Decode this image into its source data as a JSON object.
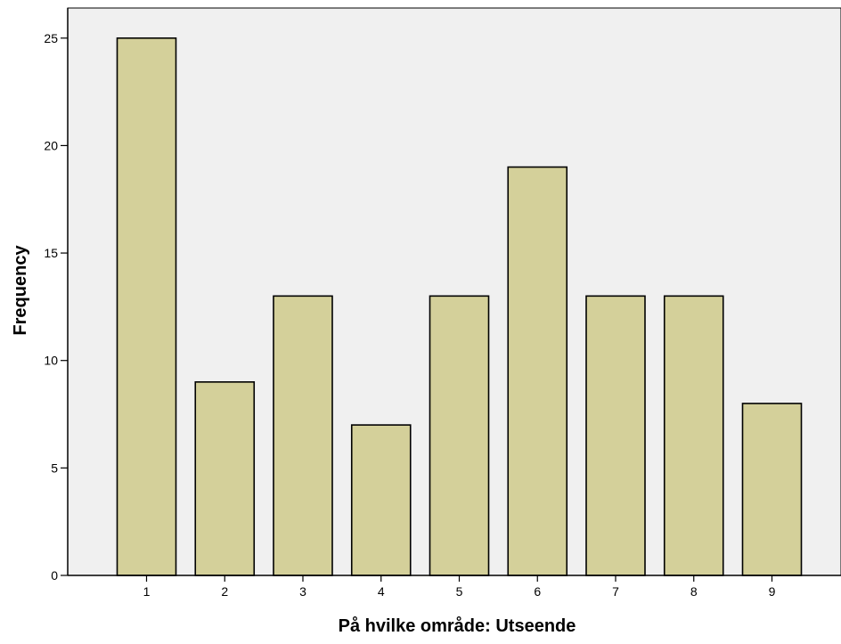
{
  "chart_data": {
    "type": "bar",
    "xlabel": "På hvilke område: Utseende",
    "ylabel": "Frequency",
    "categories": [
      "1",
      "2",
      "3",
      "4",
      "5",
      "6",
      "7",
      "8",
      "9"
    ],
    "values": [
      25,
      9,
      13,
      7,
      13,
      19,
      13,
      13,
      8
    ],
    "ylim": [
      0,
      26.4
    ],
    "yticks": [
      "0",
      "5",
      "10",
      "15",
      "20",
      "25"
    ],
    "grid": false,
    "legend": "none",
    "colors": {
      "plot_background": "#f0f0f0",
      "bar_fill": "#d4d09a",
      "bar_stroke": "#000000",
      "axis": "#000000"
    }
  }
}
